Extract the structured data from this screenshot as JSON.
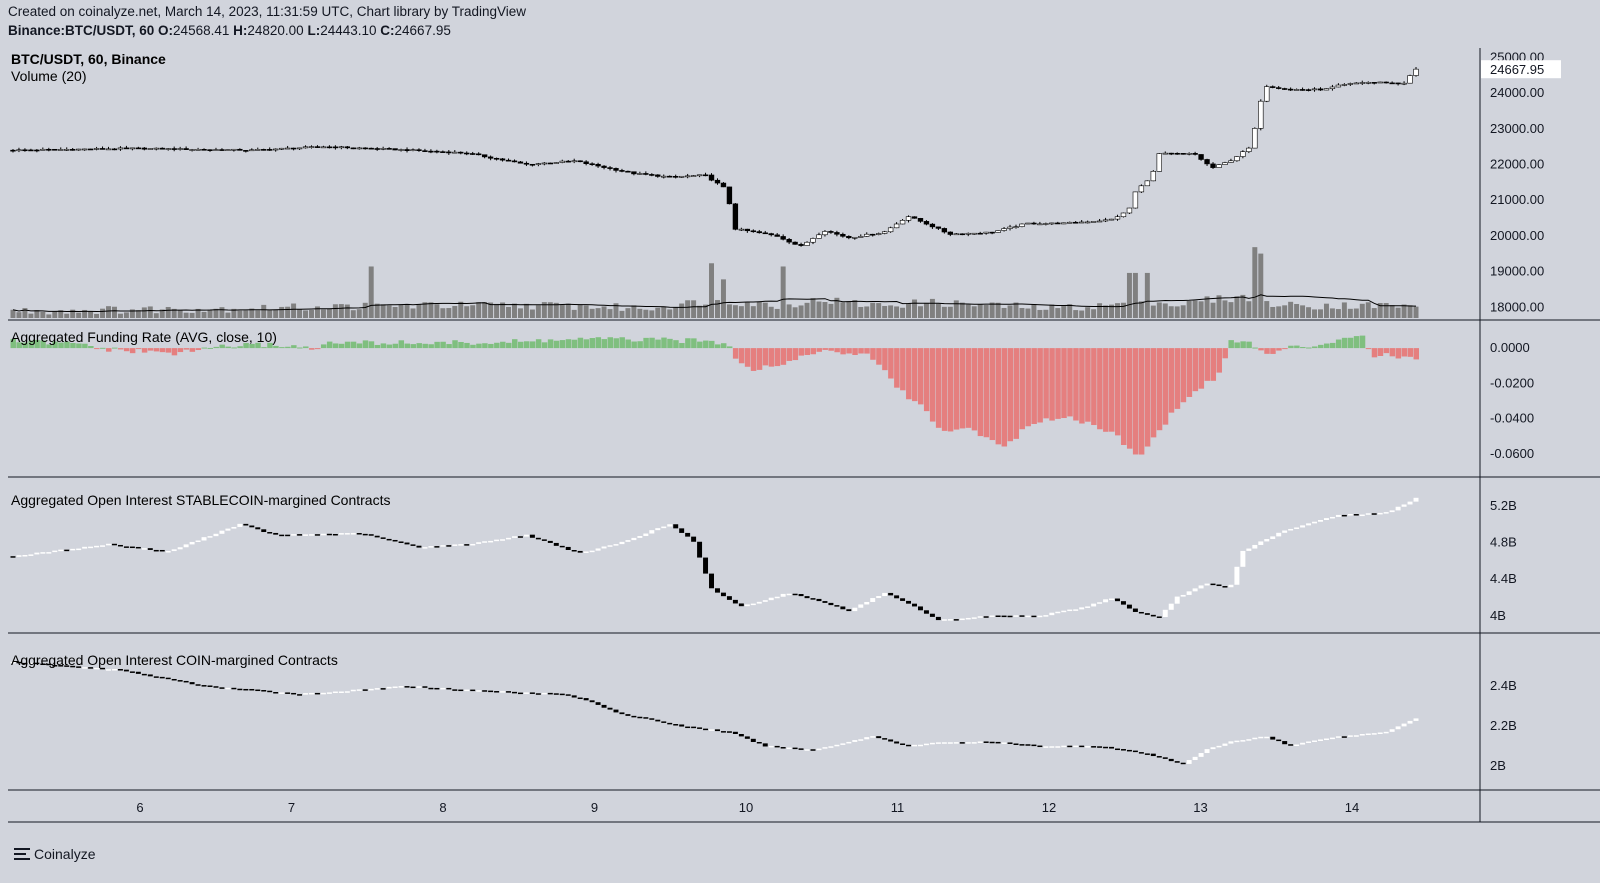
{
  "header": {
    "line1": "Created on coinalyze.net, March 14, 2023, 11:31:59 UTC, Chart library by TradingView",
    "symbol": "Binance:BTC/USDT, 60",
    "o_label": "O:",
    "o": "24568.41",
    "h_label": "H:",
    "h": "24820.00",
    "l_label": "L:",
    "l": "24443.10",
    "c_label": "C:",
    "c": "24667.95"
  },
  "footer": {
    "brand": "Coinalyze"
  },
  "colors": {
    "background": "#d1d4dc",
    "up": "#ffffff",
    "down": "#000000",
    "volume": "#808080",
    "volume_ma": "#000000",
    "funding_pos": "#7fbf7f",
    "funding_neg": "#e57f7f",
    "last_price_box": "#ffffff"
  },
  "chart_data": [
    {
      "type": "candlestick",
      "title": "BTC/USDT, 60, Binance",
      "subtitle": "Volume (20)",
      "last_price": "24667.95",
      "ylim": [
        17700,
        25150
      ],
      "yticks": [
        "25000.00",
        "24000.00",
        "23000.00",
        "22000.00",
        "21000.00",
        "20000.00",
        "19000.00",
        "18000.00"
      ],
      "x_ticks": [
        "6",
        "7",
        "8",
        "9",
        "10",
        "11",
        "12",
        "13",
        "14"
      ],
      "price_keypoints": [
        [
          0,
          22400
        ],
        [
          1,
          22450
        ],
        [
          2,
          22400
        ],
        [
          2.6,
          22500
        ],
        [
          3.2,
          22420
        ],
        [
          3.8,
          22320
        ],
        [
          4.3,
          22000
        ],
        [
          4.7,
          22100
        ],
        [
          5.2,
          21750
        ],
        [
          5.5,
          21650
        ],
        [
          5.8,
          21700
        ],
        [
          5.98,
          21300
        ],
        [
          6.05,
          20200
        ],
        [
          6.4,
          20000
        ],
        [
          6.6,
          19700
        ],
        [
          6.8,
          20150
        ],
        [
          7.0,
          19950
        ],
        [
          7.3,
          20100
        ],
        [
          7.5,
          20550
        ],
        [
          7.65,
          20350
        ],
        [
          7.85,
          20050
        ],
        [
          8.2,
          20100
        ],
        [
          8.5,
          20350
        ],
        [
          8.8,
          20350
        ],
        [
          9.2,
          20450
        ],
        [
          9.35,
          20700
        ],
        [
          9.4,
          21200
        ],
        [
          9.55,
          21700
        ],
        [
          9.6,
          22300
        ],
        [
          9.9,
          22300
        ],
        [
          10.05,
          21900
        ],
        [
          10.2,
          22100
        ],
        [
          10.38,
          22500
        ],
        [
          10.45,
          23700
        ],
        [
          10.5,
          24200
        ],
        [
          10.7,
          24100
        ],
        [
          11.0,
          24100
        ],
        [
          11.1,
          24200
        ],
        [
          11.3,
          24300
        ],
        [
          11.5,
          24300
        ],
        [
          11.65,
          24250
        ],
        [
          11.76,
          24668
        ]
      ],
      "volume_keypoints": [
        [
          0,
          1
        ],
        [
          2,
          2
        ],
        [
          3.3,
          3
        ],
        [
          4,
          3
        ],
        [
          4.5,
          3
        ],
        [
          5.3,
          2
        ],
        [
          5.9,
          5
        ],
        [
          6.4,
          3
        ],
        [
          6.8,
          5
        ],
        [
          7.2,
          3
        ],
        [
          7.7,
          4
        ],
        [
          8.2,
          3
        ],
        [
          8.7,
          2
        ],
        [
          9.2,
          3
        ],
        [
          9.4,
          5
        ],
        [
          9.8,
          3
        ],
        [
          10.0,
          5
        ],
        [
          10.4,
          6
        ],
        [
          10.6,
          3
        ],
        [
          10.8,
          3
        ],
        [
          11.2,
          3
        ],
        [
          11.6,
          3
        ],
        [
          11.76,
          2
        ]
      ],
      "volume_spikes": [
        [
          3.0,
          8
        ],
        [
          5.85,
          8.5
        ],
        [
          5.97,
          6
        ],
        [
          6.47,
          8
        ],
        [
          9.38,
          7
        ],
        [
          9.52,
          7
        ],
        [
          10.42,
          11
        ],
        [
          10.47,
          10
        ]
      ]
    },
    {
      "type": "bar",
      "title": "Aggregated Funding Rate (AVG, close, 10)",
      "ylim": [
        -0.068,
        0.008
      ],
      "yticks": [
        "0.0000",
        "-0.0200",
        "-0.0400",
        "-0.0600"
      ],
      "keypoints": [
        [
          0,
          0.004
        ],
        [
          0.6,
          0.002
        ],
        [
          0.8,
          -0.001
        ],
        [
          1.4,
          -0.003
        ],
        [
          1.7,
          0.001
        ],
        [
          2.2,
          0.002
        ],
        [
          2.5,
          0.0
        ],
        [
          2.7,
          0.003
        ],
        [
          3.4,
          0.003
        ],
        [
          4.0,
          0.003
        ],
        [
          4.7,
          0.005
        ],
        [
          5.1,
          0.005
        ],
        [
          5.8,
          0.004
        ],
        [
          6.0,
          0.003
        ],
        [
          6.05,
          -0.005
        ],
        [
          6.2,
          -0.012
        ],
        [
          6.5,
          -0.008
        ],
        [
          6.7,
          -0.002
        ],
        [
          7.0,
          -0.003
        ],
        [
          7.2,
          -0.005
        ],
        [
          7.45,
          -0.025
        ],
        [
          7.6,
          -0.032
        ],
        [
          7.8,
          -0.048
        ],
        [
          8.0,
          -0.045
        ],
        [
          8.3,
          -0.056
        ],
        [
          8.5,
          -0.045
        ],
        [
          8.8,
          -0.038
        ],
        [
          9.2,
          -0.047
        ],
        [
          9.45,
          -0.062
        ],
        [
          9.7,
          -0.038
        ],
        [
          9.9,
          -0.025
        ],
        [
          10.1,
          -0.015
        ],
        [
          10.2,
          0.003
        ],
        [
          10.35,
          0.004
        ],
        [
          10.5,
          -0.004
        ],
        [
          10.7,
          0.0
        ],
        [
          10.95,
          0.002
        ],
        [
          11.2,
          0.007
        ],
        [
          11.3,
          0.008
        ],
        [
          11.38,
          -0.004
        ],
        [
          11.76,
          -0.005
        ]
      ]
    },
    {
      "type": "candlestick",
      "title": "Aggregated Open Interest STABLECOIN-margined Contracts",
      "ylim": [
        3.9,
        5.35
      ],
      "yticks": [
        "5.2B",
        "4.8B",
        "4.4B",
        "4B"
      ],
      "keypoints": [
        [
          0,
          4.65
        ],
        [
          0.8,
          4.78
        ],
        [
          1.3,
          4.7
        ],
        [
          1.9,
          5.0
        ],
        [
          2.2,
          4.88
        ],
        [
          2.9,
          4.9
        ],
        [
          3.4,
          4.75
        ],
        [
          3.8,
          4.78
        ],
        [
          4.3,
          4.88
        ],
        [
          4.6,
          4.75
        ],
        [
          4.75,
          4.68
        ],
        [
          5.1,
          4.8
        ],
        [
          5.5,
          5.0
        ],
        [
          5.7,
          4.82
        ],
        [
          5.85,
          4.3
        ],
        [
          6.1,
          4.1
        ],
        [
          6.5,
          4.25
        ],
        [
          6.8,
          4.15
        ],
        [
          7.0,
          4.05
        ],
        [
          7.3,
          4.25
        ],
        [
          7.55,
          4.1
        ],
        [
          7.75,
          3.95
        ],
        [
          8.2,
          4.0
        ],
        [
          8.6,
          4.0
        ],
        [
          9.0,
          4.1
        ],
        [
          9.2,
          4.2
        ],
        [
          9.4,
          4.05
        ],
        [
          9.6,
          3.97
        ],
        [
          9.75,
          4.2
        ],
        [
          10.0,
          4.35
        ],
        [
          10.2,
          4.3
        ],
        [
          10.3,
          4.7
        ],
        [
          10.6,
          4.9
        ],
        [
          11.1,
          5.1
        ],
        [
          11.5,
          5.12
        ],
        [
          11.76,
          5.28
        ]
      ]
    },
    {
      "type": "candlestick",
      "title": "Aggregated Open Interest COIN-margined Contracts",
      "ylim": [
        1.92,
        2.58
      ],
      "yticks": [
        "2.4B",
        "2.2B",
        "2B"
      ],
      "keypoints": [
        [
          0,
          2.52
        ],
        [
          0.9,
          2.48
        ],
        [
          1.6,
          2.4
        ],
        [
          2.4,
          2.36
        ],
        [
          2.9,
          2.38
        ],
        [
          3.3,
          2.4
        ],
        [
          3.8,
          2.38
        ],
        [
          4.6,
          2.36
        ],
        [
          4.8,
          2.33
        ],
        [
          5.1,
          2.26
        ],
        [
          5.6,
          2.2
        ],
        [
          6.0,
          2.17
        ],
        [
          6.3,
          2.1
        ],
        [
          6.7,
          2.08
        ],
        [
          7.0,
          2.12
        ],
        [
          7.2,
          2.15
        ],
        [
          7.5,
          2.1
        ],
        [
          7.8,
          2.12
        ],
        [
          8.2,
          2.12
        ],
        [
          8.6,
          2.1
        ],
        [
          9.1,
          2.1
        ],
        [
          9.5,
          2.06
        ],
        [
          9.8,
          2.01
        ],
        [
          10.0,
          2.08
        ],
        [
          10.2,
          2.12
        ],
        [
          10.5,
          2.15
        ],
        [
          10.7,
          2.1
        ],
        [
          11.0,
          2.14
        ],
        [
          11.5,
          2.17
        ],
        [
          11.76,
          2.24
        ]
      ]
    }
  ]
}
